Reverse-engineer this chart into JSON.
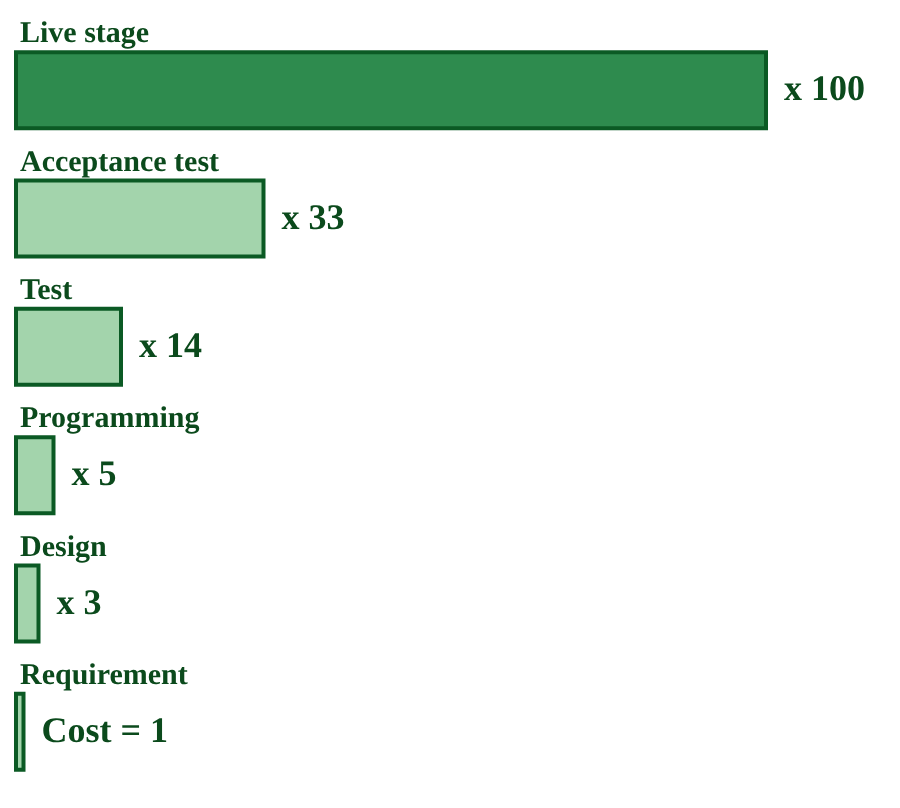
{
  "chart_data": {
    "type": "bar",
    "orientation": "horizontal",
    "categories": [
      "Live stage",
      "Acceptance test",
      "Test",
      "Programming",
      "Design",
      "Requirement"
    ],
    "values": [
      100,
      33,
      14,
      5,
      3,
      1
    ],
    "colors": [
      "#2e8b4e",
      "#a3d4ac",
      "#a3d4ac",
      "#a3d4ac",
      "#a3d4ac",
      "#a3d4ac"
    ],
    "value_labels": [
      "x 100",
      "x 33",
      "x 14",
      "x 5",
      "x 3",
      "Cost = 1"
    ]
  }
}
